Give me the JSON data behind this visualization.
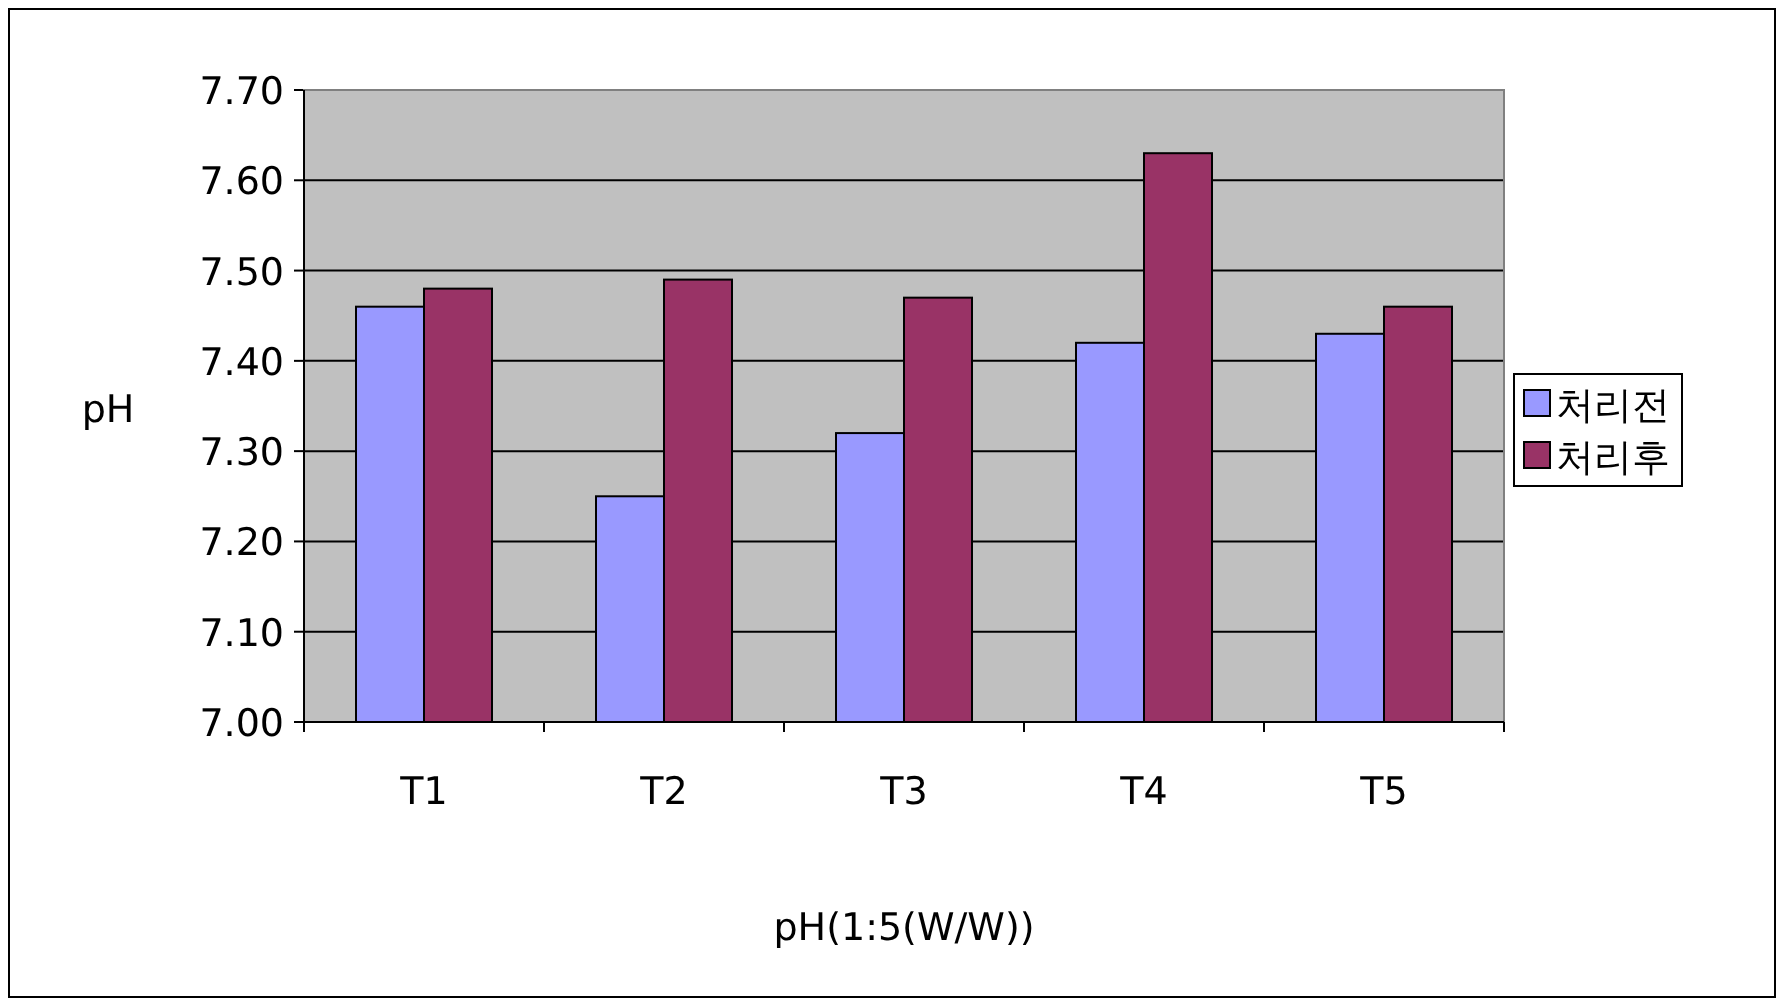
{
  "chart_data": {
    "type": "bar",
    "xlabel": "pH(1:5(W/W))",
    "ylabel": "pH",
    "categories": [
      "T1",
      "T2",
      "T3",
      "T4",
      "T5"
    ],
    "series": [
      {
        "name": "처리전",
        "color": "#9999ff",
        "values": [
          7.46,
          7.25,
          7.32,
          7.42,
          7.43
        ]
      },
      {
        "name": "처리후",
        "color": "#993366",
        "values": [
          7.48,
          7.49,
          7.47,
          7.63,
          7.46
        ]
      }
    ],
    "ylim": [
      7.0,
      7.7
    ],
    "yticks": [
      {
        "value": 7.0,
        "label": "7.00"
      },
      {
        "value": 7.1,
        "label": "7.10"
      },
      {
        "value": 7.2,
        "label": "7.20"
      },
      {
        "value": 7.3,
        "label": "7.30"
      },
      {
        "value": 7.4,
        "label": "7.40"
      },
      {
        "value": 7.5,
        "label": "7.50"
      },
      {
        "value": 7.6,
        "label": "7.60"
      },
      {
        "value": 7.7,
        "label": "7.70"
      }
    ],
    "grid": "y",
    "legend": "right"
  }
}
